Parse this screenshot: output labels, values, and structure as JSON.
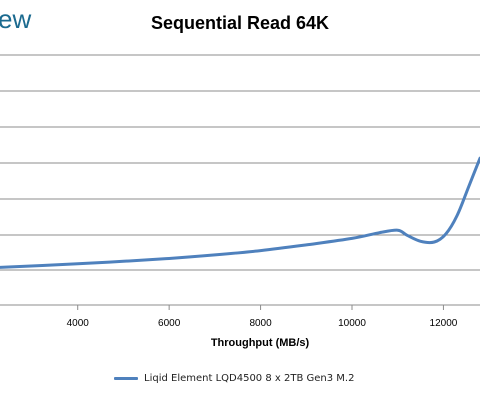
{
  "brand_fragment": "ew",
  "chart_data": {
    "type": "line",
    "title": "Sequential Read 64K",
    "xlabel": "Throughput (MB/s)",
    "ylabel": "",
    "x_ticks": [
      4000,
      6000,
      8000,
      10000,
      12000
    ],
    "x_range": [
      2300,
      12800
    ],
    "grid": true,
    "legend_position": "bottom",
    "series": [
      {
        "name": "Liqid Element LQD4500 8 x 2TB Gen3 M.2",
        "color": "#4f81bd",
        "points": [
          [
            2300,
            1.05
          ],
          [
            4000,
            1.15
          ],
          [
            5000,
            1.22
          ],
          [
            6000,
            1.3
          ],
          [
            7000,
            1.4
          ],
          [
            8000,
            1.52
          ],
          [
            9000,
            1.68
          ],
          [
            10000,
            1.86
          ],
          [
            10600,
            2.02
          ],
          [
            11000,
            2.09
          ],
          [
            11200,
            1.95
          ],
          [
            11500,
            1.78
          ],
          [
            11800,
            1.76
          ],
          [
            12050,
            1.98
          ],
          [
            12300,
            2.5
          ],
          [
            12550,
            3.3
          ],
          [
            12800,
            4.1
          ]
        ]
      }
    ]
  }
}
